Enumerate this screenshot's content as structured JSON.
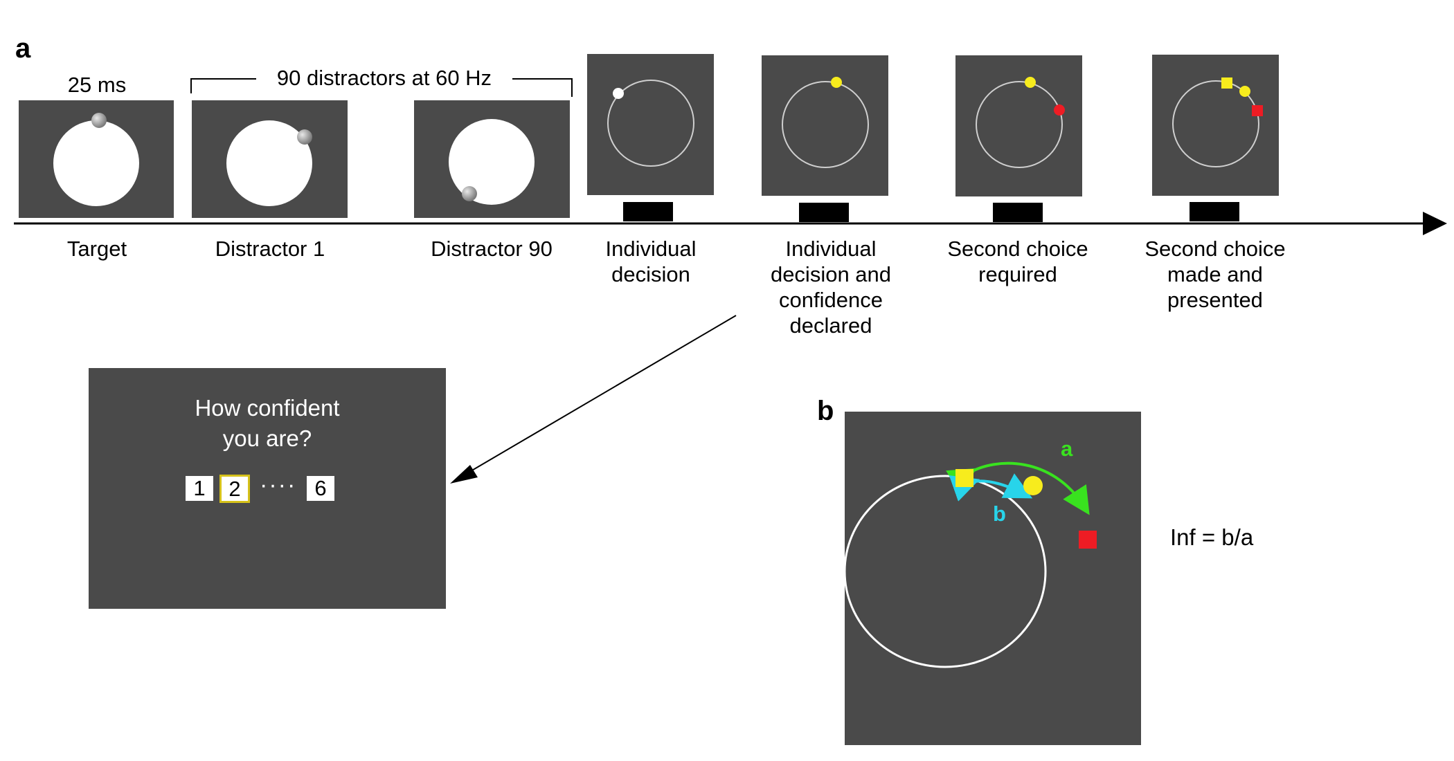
{
  "panels": {
    "a": "a",
    "b": "b"
  },
  "timeline": {
    "duration_label": "25 ms",
    "distractors_label": "90 distractors at 60 Hz",
    "stages": [
      {
        "id": "target",
        "label": "Target"
      },
      {
        "id": "distractor1",
        "label": "Distractor 1"
      },
      {
        "id": "distractor90",
        "label": "Distractor 90"
      },
      {
        "id": "individual",
        "label_lines": [
          "Individual",
          "decision"
        ]
      },
      {
        "id": "confidence",
        "label_lines": [
          "Individual",
          "decision and",
          "confidence",
          "declared"
        ]
      },
      {
        "id": "second_required",
        "label_lines": [
          "Second choice",
          "required"
        ]
      },
      {
        "id": "second_made",
        "label_lines": [
          "Second choice",
          "made and",
          "presented"
        ]
      }
    ]
  },
  "confidence_screen": {
    "title_lines": [
      "How confident",
      "you are?"
    ],
    "scale": {
      "first": "1",
      "selected": "2",
      "dots": "····",
      "last": "6"
    }
  },
  "panel_b": {
    "arc_a_label": "a",
    "arc_b_label": "b",
    "formula": "Inf = b/a"
  },
  "colors": {
    "screen": "#4a4a4a",
    "yellow": "#f7ec1d",
    "red": "#ee1c24",
    "green": "#39e21f",
    "cyan": "#28d4ea",
    "highlight_border": "#d6c21a"
  }
}
